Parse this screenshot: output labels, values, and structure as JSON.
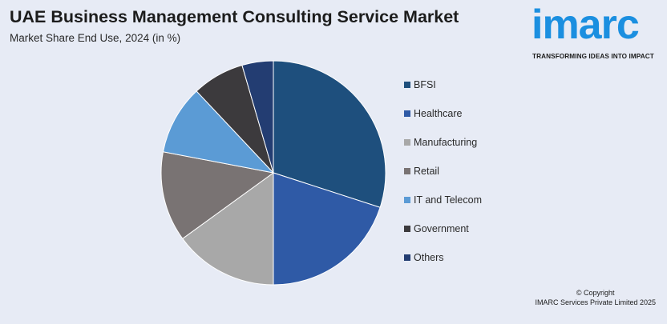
{
  "chart_data": {
    "type": "pie",
    "title": "UAE Business Management Consulting Service Market",
    "subtitle": "Market Share End Use, 2024 (in %)",
    "categories": [
      "BFSI",
      "Healthcare",
      "Manufacturing",
      "Retail",
      "IT and Telecom",
      "Government",
      "Others"
    ],
    "values": [
      30,
      20,
      15,
      13,
      10,
      7.5,
      4.5
    ],
    "colors": [
      "#1e4f7d",
      "#2f5aa6",
      "#a8a8a8",
      "#797373",
      "#5b9bd5",
      "#3c3a3d",
      "#233d72"
    ],
    "start_angle_deg": 0,
    "direction": "clockwise",
    "legend_position": "right"
  },
  "brand": {
    "logo_text": "imarc",
    "tagline": "TRANSFORMING IDEAS INTO IMPACT"
  },
  "footer": {
    "copyright_line1": "© Copyright",
    "copyright_line2": "IMARC Services Private Limited 2025"
  }
}
